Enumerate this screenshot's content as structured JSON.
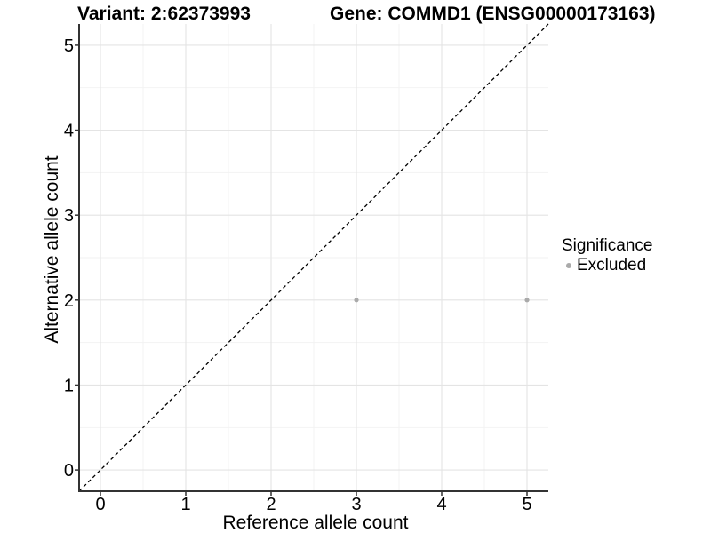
{
  "chart_data": {
    "type": "scatter",
    "title_left": "Variant: 2:62373993",
    "title_right": "Gene: COMMD1 (ENSG00000173163)",
    "xlabel": "Reference allele count",
    "ylabel": "Alternative allele count",
    "xlim": [
      -0.25,
      5.25
    ],
    "ylim": [
      -0.25,
      5.25
    ],
    "x_ticks": [
      0,
      1,
      2,
      3,
      4,
      5
    ],
    "y_ticks": [
      0,
      1,
      2,
      3,
      4,
      5
    ],
    "x_minor": [
      0.5,
      1.5,
      2.5,
      3.5,
      4.5
    ],
    "y_minor": [
      0.5,
      1.5,
      2.5,
      3.5,
      4.5
    ],
    "grid": true,
    "identity_line": {
      "style": "dashed",
      "slope": 1,
      "intercept": 0
    },
    "series": [
      {
        "name": "Excluded",
        "color": "#aaaaaa",
        "points": [
          {
            "x": 3,
            "y": 2
          },
          {
            "x": 5,
            "y": 2
          }
        ]
      }
    ],
    "legend": {
      "position": "right",
      "title": "Significance",
      "items": [
        {
          "label": "Excluded",
          "color": "#aaaaaa",
          "marker": "circle-icon"
        }
      ]
    },
    "colors": {
      "background": "#ffffff",
      "grid_major": "#e4e4e4",
      "grid_minor": "#f2f2f2",
      "axis_line": "#333333",
      "tick_mark": "#333333",
      "text": "#000000",
      "point": "#aaaaaa",
      "identity_line": "#000000"
    }
  }
}
